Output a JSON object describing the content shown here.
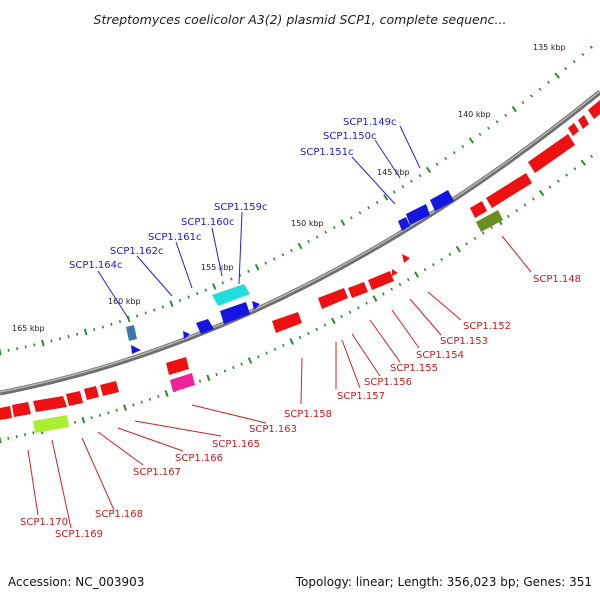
{
  "title": "Streptomyces coelicolor A3(2) plasmid SCP1, complete sequenc...",
  "footer": {
    "accession": "Accession: NC_003903",
    "summary": "Topology: linear; Length: 356,023 bp; Genes: 351"
  },
  "colors": {
    "backbone": "#8a8a8a",
    "forward_gene": "#ee1111",
    "reverse_gene": "#1515e0",
    "cyan_gene": "#22dddd",
    "magenta_gene": "#ee2299",
    "olive_gene": "#6b8e23",
    "lime_gene": "#aaee33",
    "steel_gene": "#3a78a8",
    "tick": "#2e8b2e"
  },
  "kbp_labels": [
    {
      "text": "135 kbp",
      "kbp": 135
    },
    {
      "text": "140 kbp",
      "kbp": 140
    },
    {
      "text": "145 kbp",
      "kbp": 145
    },
    {
      "text": "150 kbp",
      "kbp": 150
    },
    {
      "text": "155 kbp",
      "kbp": 155
    },
    {
      "text": "160 kbp",
      "kbp": 160
    },
    {
      "text": "165 kbp",
      "kbp": 165
    }
  ],
  "reverse_labels": [
    {
      "text": "SCP1.149c"
    },
    {
      "text": "SCP1.150c"
    },
    {
      "text": "SCP1.151c"
    },
    {
      "text": "SCP1.159c"
    },
    {
      "text": "SCP1.160c"
    },
    {
      "text": "SCP1.161c"
    },
    {
      "text": "SCP1.162c"
    },
    {
      "text": "SCP1.164c"
    }
  ],
  "forward_labels": [
    {
      "text": "SCP1.148"
    },
    {
      "text": "SCP1.152"
    },
    {
      "text": "SCP1.153"
    },
    {
      "text": "SCP1.154"
    },
    {
      "text": "SCP1.155"
    },
    {
      "text": "SCP1.156"
    },
    {
      "text": "SCP1.157"
    },
    {
      "text": "SCP1.158"
    },
    {
      "text": "SCP1.163"
    },
    {
      "text": "SCP1.165"
    },
    {
      "text": "SCP1.166"
    },
    {
      "text": "SCP1.167"
    },
    {
      "text": "SCP1.168"
    },
    {
      "text": "SCP1.169"
    },
    {
      "text": "SCP1.170"
    }
  ]
}
